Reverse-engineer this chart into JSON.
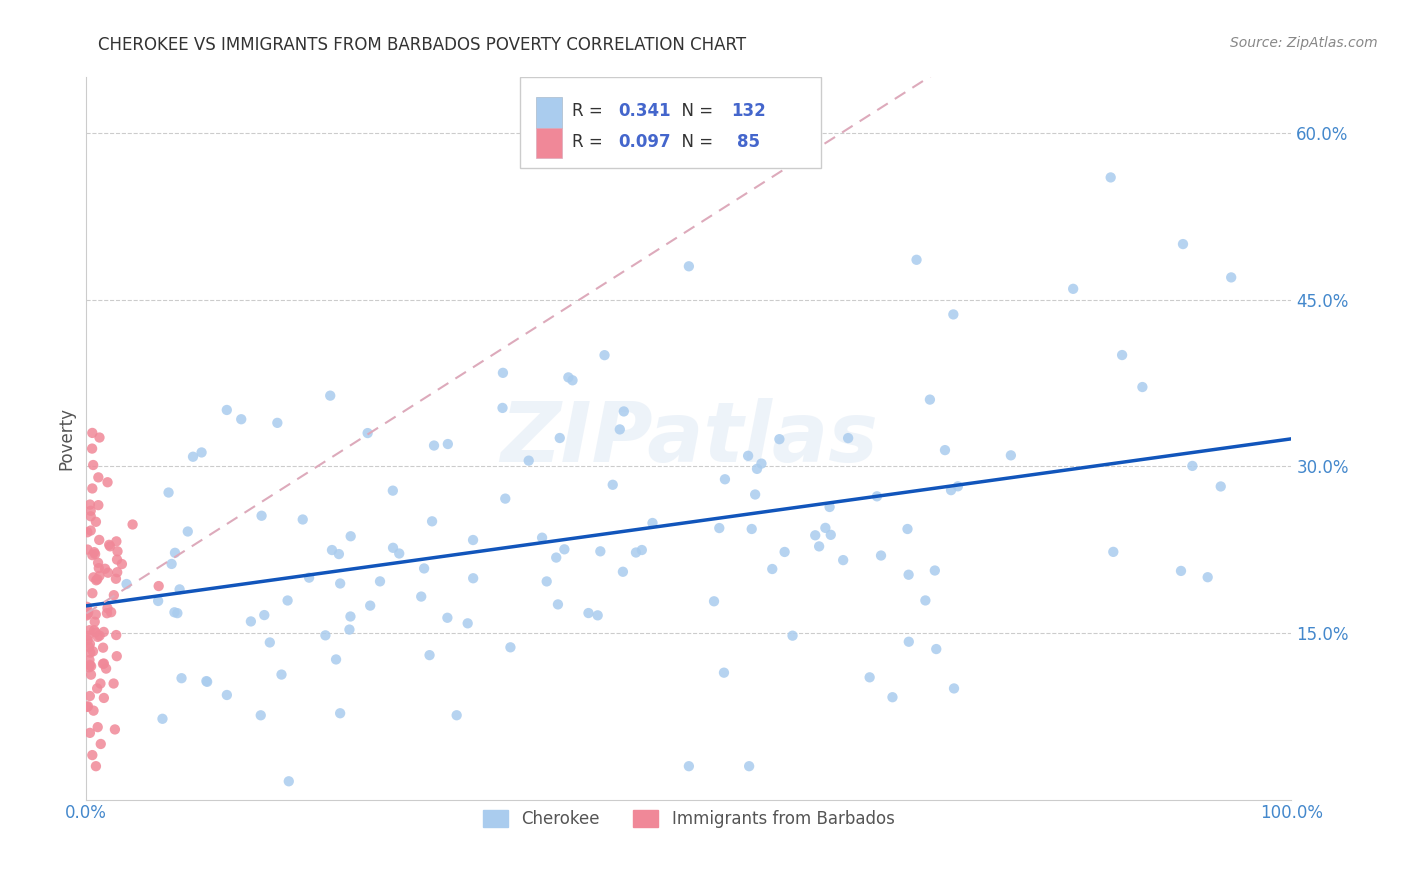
{
  "title": "CHEROKEE VS IMMIGRANTS FROM BARBADOS POVERTY CORRELATION CHART",
  "source": "Source: ZipAtlas.com",
  "ylabel": "Poverty",
  "xlim": [
    0,
    1.0
  ],
  "ylim": [
    0,
    0.65
  ],
  "x_ticks": [
    0.0,
    1.0
  ],
  "x_tick_labels": [
    "0.0%",
    "100.0%"
  ],
  "y_ticks": [
    0.15,
    0.3,
    0.45,
    0.6
  ],
  "y_tick_labels": [
    "15.0%",
    "30.0%",
    "45.0%",
    "60.0%"
  ],
  "cherokee_color": "#aaccee",
  "barbados_color": "#f08898",
  "trendline_cherokee_color": "#1155bb",
  "trendline_barbados_color": "#ddaabb",
  "legend_R1": "0.341",
  "legend_N1": "132",
  "legend_R2": "0.097",
  "legend_N2": "85",
  "watermark": "ZIPatlas",
  "cherokee_label": "Cherokee",
  "barbados_label": "Immigrants from Barbados",
  "title_color": "#333333",
  "source_color": "#888888",
  "tick_color": "#4488cc",
  "legend_text_color": "#333333",
  "legend_value_color": "#4466cc"
}
